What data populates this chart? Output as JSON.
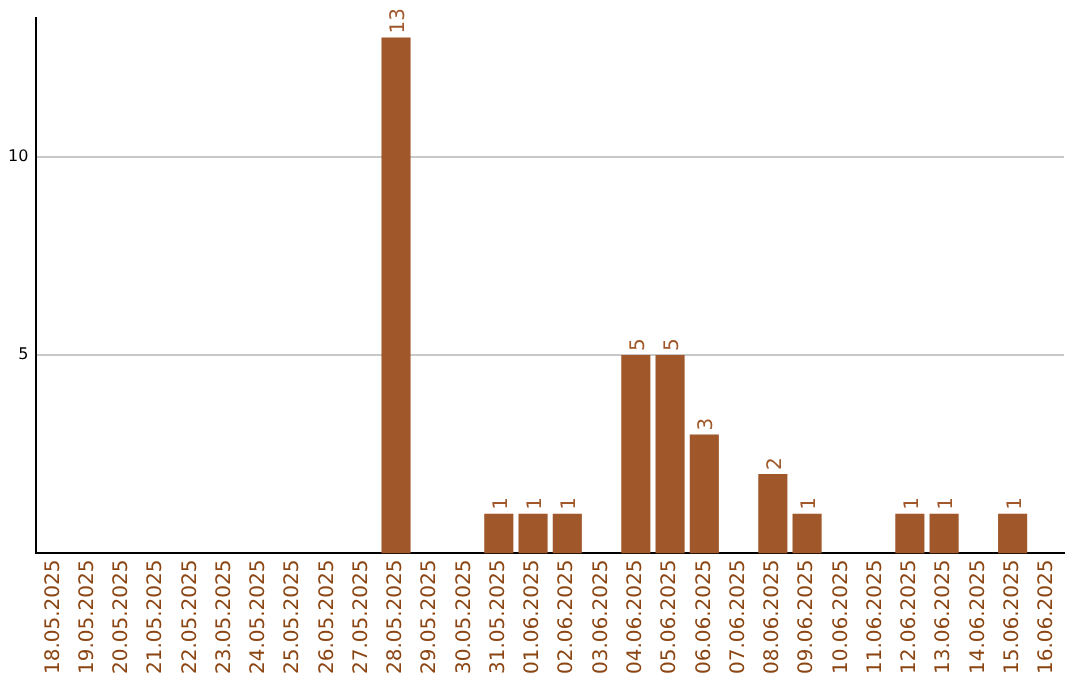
{
  "chart_data": {
    "type": "bar",
    "categories": [
      "18.05.2025",
      "19.05.2025",
      "20.05.2025",
      "21.05.2025",
      "22.05.2025",
      "23.05.2025",
      "24.05.2025",
      "25.05.2025",
      "26.05.2025",
      "27.05.2025",
      "28.05.2025",
      "29.05.2025",
      "30.05.2025",
      "31.05.2025",
      "01.06.2025",
      "02.06.2025",
      "03.06.2025",
      "04.06.2025",
      "05.06.2025",
      "06.06.2025",
      "07.06.2025",
      "08.06.2025",
      "09.06.2025",
      "10.06.2025",
      "11.06.2025",
      "12.06.2025",
      "13.06.2025",
      "14.06.2025",
      "15.06.2025",
      "16.06.2025"
    ],
    "values": [
      0,
      0,
      0,
      0,
      0,
      0,
      0,
      0,
      0,
      0,
      13,
      0,
      0,
      1,
      1,
      1,
      0,
      5,
      5,
      3,
      0,
      2,
      1,
      0,
      0,
      1,
      1,
      0,
      1,
      0
    ],
    "value_labels": [
      null,
      null,
      null,
      null,
      null,
      null,
      null,
      null,
      null,
      null,
      "13",
      null,
      null,
      "1",
      "1",
      "1",
      null,
      "5",
      "5",
      "3",
      null,
      "2",
      "1",
      null,
      null,
      "1",
      "1",
      null,
      "1",
      null
    ],
    "color": "#a0582a",
    "ylim": [
      0,
      13.5
    ],
    "yticks": [
      5,
      10
    ],
    "grid": "y",
    "legend": false
  }
}
